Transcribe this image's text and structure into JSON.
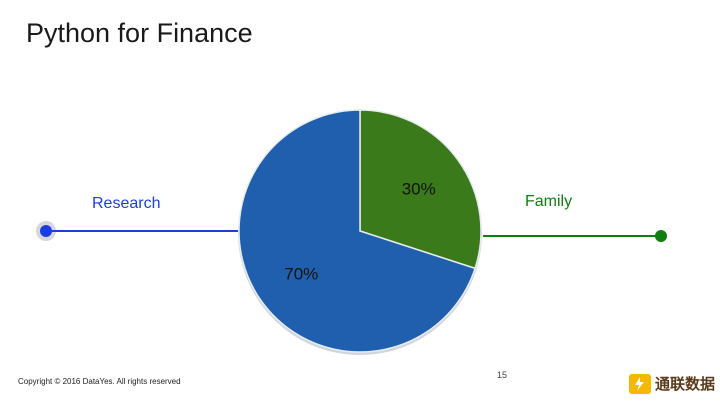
{
  "title": "Python for Finance",
  "chart_data": {
    "type": "pie",
    "slices": [
      {
        "label": "Family",
        "value": 30,
        "display": "30%",
        "color": "#3a7a1a"
      },
      {
        "label": "Research",
        "value": 70,
        "display": "70%",
        "color": "#1f5fad"
      }
    ],
    "callouts": {
      "left": {
        "label": "Research",
        "color": "#1a3fe0"
      },
      "right": {
        "label": "Family",
        "color": "#0f7f0f"
      }
    }
  },
  "footer": {
    "copyright": "Copyright © 2016 DataYes. All rights reserved",
    "page_number": "15",
    "logo_text": "通联数据",
    "logo_color": "#f5b800"
  }
}
